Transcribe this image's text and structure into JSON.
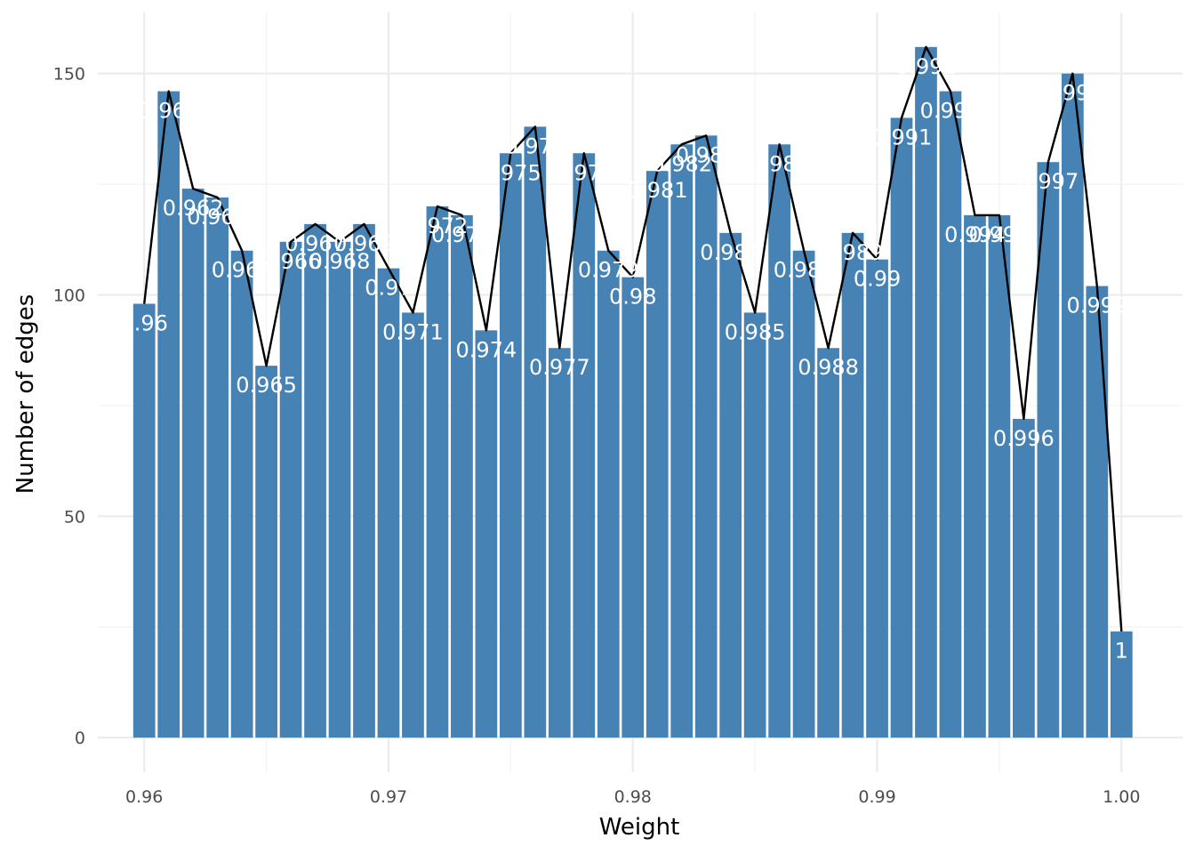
{
  "chart_data": {
    "type": "bar",
    "title": "",
    "xlabel": "Weight",
    "ylabel": "Number of edges",
    "x": [
      0.96,
      0.961,
      0.962,
      0.963,
      0.964,
      0.965,
      0.966,
      0.967,
      0.968,
      0.969,
      0.97,
      0.971,
      0.972,
      0.973,
      0.974,
      0.975,
      0.976,
      0.977,
      0.978,
      0.979,
      0.98,
      0.981,
      0.982,
      0.983,
      0.984,
      0.985,
      0.986,
      0.987,
      0.988,
      0.989,
      0.99,
      0.991,
      0.992,
      0.993,
      0.994,
      0.995,
      0.996,
      0.997,
      0.998,
      0.999,
      1
    ],
    "values": [
      98,
      146,
      124,
      122,
      110,
      84,
      112,
      116,
      112,
      116,
      106,
      96,
      120,
      118,
      92,
      132,
      138,
      88,
      132,
      110,
      104,
      128,
      134,
      136,
      114,
      96,
      134,
      110,
      88,
      114,
      108,
      140,
      156,
      146,
      118,
      118,
      72,
      130,
      150,
      102,
      24
    ],
    "labels": [
      "0.96",
      "0.961",
      "0.962",
      "0.963",
      "0.964",
      "0.965",
      "0.966",
      "0.967",
      "0.968",
      "0.969",
      "0.97",
      "0.971",
      "0.972",
      "0.973",
      "0.974",
      "0.975",
      "0.976",
      "0.977",
      "0.978",
      "0.979",
      "0.98",
      "0.981",
      "0.982",
      "0.983",
      "0.984",
      "0.985",
      "0.986",
      "0.987",
      "0.988",
      "0.989",
      "0.99",
      "0.991",
      "0.992",
      "0.993",
      "0.994",
      "0.995",
      "0.996",
      "0.997",
      "0.998",
      "0.999",
      "1"
    ],
    "xlim": [
      0.9581,
      1.0025
    ],
    "ylim": [
      -7.8,
      163.8
    ],
    "x_ticks": [
      0.96,
      0.97,
      0.98,
      0.99,
      1.0
    ],
    "x_tick_labels": [
      "0.96",
      "0.97",
      "0.98",
      "0.99",
      "1.00"
    ],
    "y_ticks": [
      0,
      50,
      100,
      150
    ],
    "y_tick_labels": [
      "0",
      "50",
      "100",
      "150"
    ],
    "bar_color": "#4682b4",
    "line_color": "#000000",
    "label_color": "#ffffff",
    "grid": true
  }
}
